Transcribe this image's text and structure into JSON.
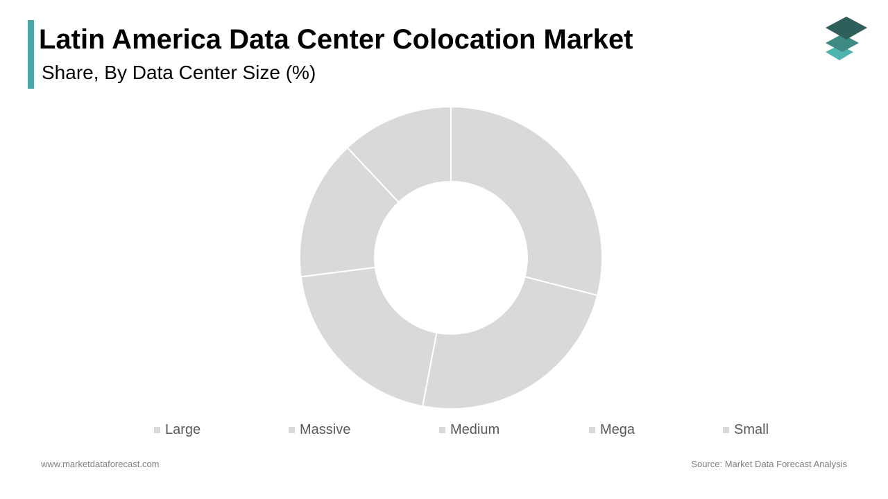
{
  "header": {
    "title": "Latin America Data Center Colocation Market",
    "subtitle": "Share, By Data Center Size (%)"
  },
  "chart_data": {
    "type": "pie",
    "donut": true,
    "categories": [
      "Large",
      "Massive",
      "Medium",
      "Mega",
      "Small"
    ],
    "values": [
      29,
      24,
      20,
      15,
      12
    ],
    "colors": [
      "#d9d9d9",
      "#d9d9d9",
      "#d9d9d9",
      "#d9d9d9",
      "#d9d9d9"
    ],
    "legend_position": "bottom",
    "data_labels_shown": false
  },
  "legend": {
    "items": [
      "Large",
      "Massive",
      "Medium",
      "Mega",
      "Small"
    ]
  },
  "footer": {
    "website": "www.marketdataforecast.com",
    "source": "Source: Market Data Forecast Analysis"
  },
  "theme": {
    "accent": "#4aa6a6",
    "logo_top": "#2f5f5a",
    "logo_mid": "#3f8a85",
    "logo_bottom": "#4fb3b0"
  },
  "logo": {
    "icon": "stacked-layers-icon"
  }
}
